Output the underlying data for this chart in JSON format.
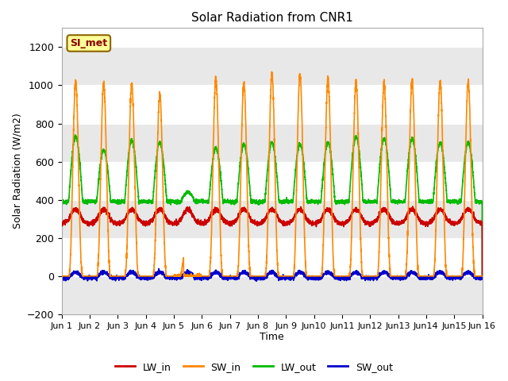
{
  "title": "Solar Radiation from CNR1",
  "xlabel": "Time",
  "ylabel": "Solar Radiation (W/m2)",
  "ylim": [
    -200,
    1300
  ],
  "yticks": [
    -200,
    0,
    200,
    400,
    600,
    800,
    1000,
    1200
  ],
  "plot_bg_color": "#ffffff",
  "fig_bg_color": "#ffffff",
  "grid_band_color": "#e8e8e8",
  "annotation_text": "SI_met",
  "annotation_bg": "#ffff99",
  "annotation_border": "#8b6500",
  "annotation_text_color": "#8b0000",
  "line_colors": {
    "LW_in": "#cc0000",
    "SW_in": "#ff8800",
    "LW_out": "#00bb00",
    "SW_out": "#0000cc"
  },
  "n_days": 15,
  "points_per_day": 288,
  "x_tick_labels": [
    "Jun 1",
    "Jun 2",
    "Jun 3",
    "Jun 4",
    "Jun 5",
    "Jun 6",
    "Jun 7",
    "Jun 8",
    "Jun 9",
    "Jun10",
    "Jun11",
    "Jun12",
    "Jun13",
    "Jun14",
    "Jun15",
    "Jun 16"
  ]
}
